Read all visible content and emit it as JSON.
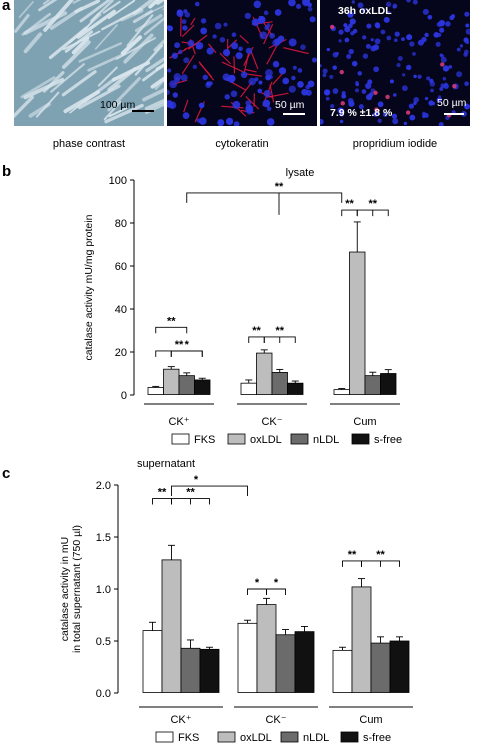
{
  "panel_a": {
    "letter": "a",
    "images": [
      {
        "caption": "phase contrast",
        "scale_bar": "100 µm",
        "colors": {
          "bg": "#7fa2b3",
          "cell": "#dbe7ee"
        }
      },
      {
        "caption": "cytokeratin",
        "scale_bar": "50 µm",
        "colors": {
          "bg": "#05051c",
          "nucleus": "#2c35e0",
          "filament": "#e0183c"
        }
      },
      {
        "caption": "propridium iodide",
        "scale_bar": "50 µm",
        "title": "36h oxLDL",
        "stat": "7.9 % ±1.8 %",
        "colors": {
          "bg": "#05051c",
          "nucleus": "#2c35e0",
          "pi": "#d43a7a"
        }
      }
    ]
  },
  "panel_b": {
    "letter": "b"
  },
  "panel_c": {
    "letter": "c"
  },
  "chart_data": [
    {
      "type": "bar",
      "title": "lysate",
      "ylabel": "catalase activity  mU/mg protein",
      "ylim": [
        0,
        100
      ],
      "yticks": [
        "0",
        "20",
        "40",
        "60",
        "80",
        "100"
      ],
      "ytick_values": [
        0,
        20,
        40,
        60,
        80,
        100
      ],
      "categories": [
        "CK⁺",
        "CK⁻",
        "Cum"
      ],
      "series": [
        {
          "name": "FKS",
          "color": "#ffffff",
          "values": [
            3.5,
            5.5,
            2.5
          ],
          "errors": [
            0.5,
            1.5,
            0.5
          ]
        },
        {
          "name": "oxLDL",
          "color": "#bdbdbd",
          "values": [
            12,
            19.5,
            66.5
          ],
          "errors": [
            1.2,
            1.5,
            14
          ]
        },
        {
          "name": "nLDL",
          "color": "#6b6b6b",
          "values": [
            9,
            10.5,
            9
          ],
          "errors": [
            1.3,
            1.4,
            1.6
          ]
        },
        {
          "name": "s-free",
          "color": "#111111",
          "values": [
            7,
            5.5,
            10
          ],
          "errors": [
            0.8,
            1.0,
            1.8
          ]
        }
      ],
      "significance": [
        "**",
        "**",
        "*",
        "**",
        "**",
        "**",
        "**",
        "**"
      ],
      "legend_position": "bottom"
    },
    {
      "type": "bar",
      "title": "supernatant",
      "ylabel": "catalase activity in mU in total supernatant (750 µl)",
      "ylabel_lines": [
        "catalase activity in mU",
        "in total supernatant (750 µl)"
      ],
      "ylim": [
        0,
        2.0
      ],
      "yticks": [
        "0.0",
        "0.5",
        "1.0",
        "1.5",
        "2.0"
      ],
      "ytick_values": [
        0,
        0.5,
        1.0,
        1.5,
        2.0
      ],
      "categories": [
        "CK⁺",
        "CK⁻",
        "Cum"
      ],
      "series": [
        {
          "name": "FKS",
          "color": "#ffffff",
          "values": [
            0.6,
            0.67,
            0.41
          ],
          "errors": [
            0.08,
            0.03,
            0.03
          ]
        },
        {
          "name": "oxLDL",
          "color": "#bdbdbd",
          "values": [
            1.28,
            0.85,
            1.02
          ],
          "errors": [
            0.14,
            0.06,
            0.08
          ]
        },
        {
          "name": "nLDL",
          "color": "#6b6b6b",
          "values": [
            0.43,
            0.56,
            0.48
          ],
          "errors": [
            0.08,
            0.05,
            0.06
          ]
        },
        {
          "name": "s-free",
          "color": "#111111",
          "values": [
            0.42,
            0.59,
            0.5
          ],
          "errors": [
            0.02,
            0.05,
            0.04
          ]
        }
      ],
      "significance": [
        "**",
        "**",
        "*",
        "*",
        "*",
        "**",
        "**"
      ],
      "legend_position": "bottom"
    }
  ]
}
